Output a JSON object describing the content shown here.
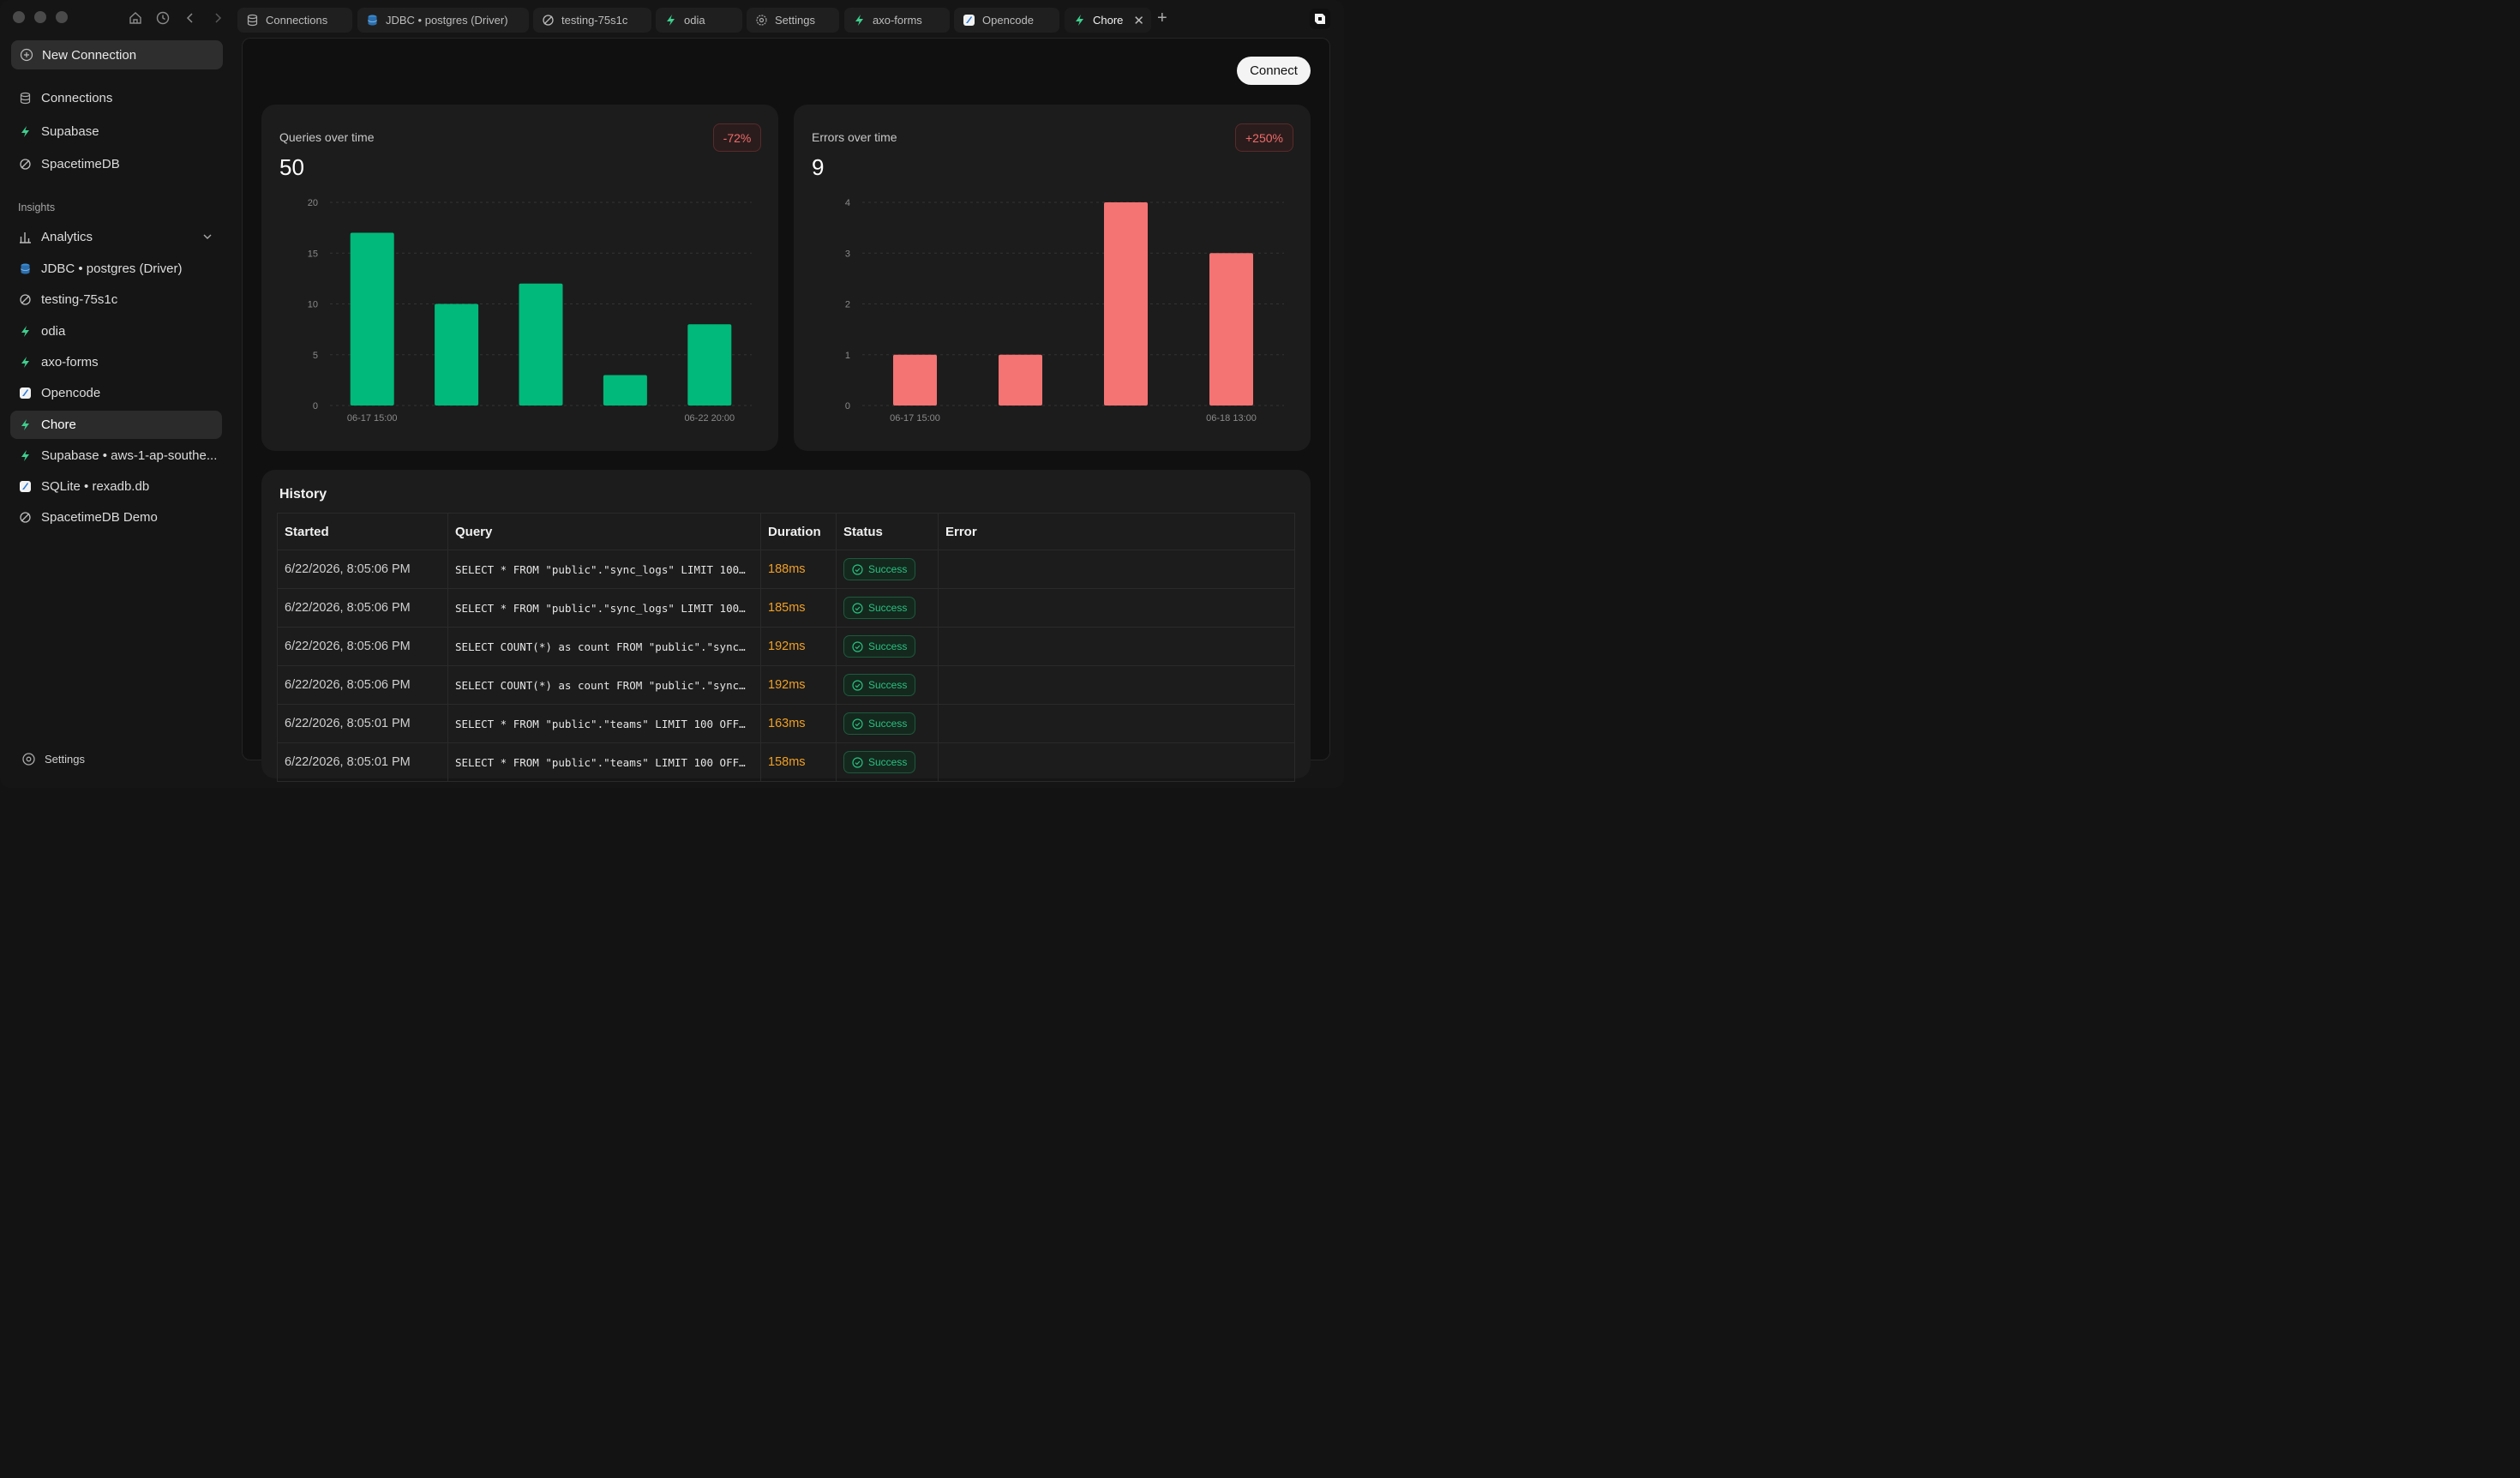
{
  "window": {
    "tabs": [
      {
        "label": "Connections",
        "icon": "database-icon"
      },
      {
        "label": "JDBC • postgres (Driver)",
        "icon": "database-blue-icon"
      },
      {
        "label": "testing-75s1c",
        "icon": "spacetime-icon"
      },
      {
        "label": "odia",
        "icon": "bolt-icon"
      },
      {
        "label": "Settings",
        "icon": "gear-icon"
      },
      {
        "label": "axo-forms",
        "icon": "bolt-icon"
      },
      {
        "label": "Opencode",
        "icon": "sqlite-icon"
      },
      {
        "label": "Chore",
        "icon": "bolt-icon"
      }
    ],
    "active_tab": "Chore"
  },
  "sidebar": {
    "new_connection": "New Connection",
    "top_items": [
      {
        "label": "Connections",
        "icon": "database-icon"
      },
      {
        "label": "Supabase",
        "icon": "bolt-icon"
      },
      {
        "label": "SpacetimeDB",
        "icon": "spacetime-icon"
      }
    ],
    "section_label": "Insights",
    "analytics": "Analytics",
    "items": [
      {
        "label": "JDBC • postgres (Driver)",
        "icon": "database-blue-icon"
      },
      {
        "label": "testing-75s1c",
        "icon": "spacetime-icon"
      },
      {
        "label": "odia",
        "icon": "bolt-icon"
      },
      {
        "label": "axo-forms",
        "icon": "bolt-icon"
      },
      {
        "label": "Opencode",
        "icon": "sqlite-icon"
      },
      {
        "label": "Chore",
        "icon": "bolt-icon"
      },
      {
        "label": "Supabase • aws-1-ap-southe...",
        "icon": "bolt-icon"
      },
      {
        "label": "SQLite • rexadb.db",
        "icon": "sqlite-icon"
      },
      {
        "label": "SpacetimeDB Demo",
        "icon": "spacetime-icon"
      }
    ],
    "settings": "Settings"
  },
  "main": {
    "connect_label": "Connect",
    "history_title": "History",
    "columns": [
      "Started",
      "Query",
      "Duration",
      "Status",
      "Error"
    ],
    "rows": [
      {
        "started": "6/22/2026, 8:05:06 PM",
        "query": "SELECT * FROM \"public\".\"sync_logs\" LIMIT 100…",
        "duration": "188ms",
        "status": "Success",
        "error": ""
      },
      {
        "started": "6/22/2026, 8:05:06 PM",
        "query": "SELECT * FROM \"public\".\"sync_logs\" LIMIT 100…",
        "duration": "185ms",
        "status": "Success",
        "error": ""
      },
      {
        "started": "6/22/2026, 8:05:06 PM",
        "query": "SELECT COUNT(*) as count FROM \"public\".\"sync…",
        "duration": "192ms",
        "status": "Success",
        "error": ""
      },
      {
        "started": "6/22/2026, 8:05:06 PM",
        "query": "SELECT COUNT(*) as count FROM \"public\".\"sync…",
        "duration": "192ms",
        "status": "Success",
        "error": ""
      },
      {
        "started": "6/22/2026, 8:05:01 PM",
        "query": "SELECT * FROM \"public\".\"teams\" LIMIT 100 OFF…",
        "duration": "163ms",
        "status": "Success",
        "error": ""
      },
      {
        "started": "6/22/2026, 8:05:01 PM",
        "query": "SELECT * FROM \"public\".\"teams\" LIMIT 100 OFF…",
        "duration": "158ms",
        "status": "Success",
        "error": ""
      }
    ]
  },
  "chart_data": [
    {
      "type": "bar",
      "title": "Queries over time",
      "total": "50",
      "change": "-72%",
      "color": "#00b97a",
      "values": [
        17,
        10,
        12,
        3,
        8
      ],
      "x_tick_labels": [
        "06-17 15:00",
        "06-22 20:00"
      ],
      "yticks": [
        0,
        5,
        10,
        15,
        20
      ],
      "ylim": [
        0,
        20
      ],
      "grid": true
    },
    {
      "type": "bar",
      "title": "Errors over time",
      "total": "9",
      "change": "+250%",
      "color": "#f47373",
      "values": [
        1,
        1,
        4,
        3
      ],
      "x_tick_labels": [
        "06-17 15:00",
        "06-18 13:00"
      ],
      "yticks": [
        0,
        1,
        2,
        3,
        4
      ],
      "ylim": [
        0,
        4
      ],
      "grid": true
    }
  ]
}
